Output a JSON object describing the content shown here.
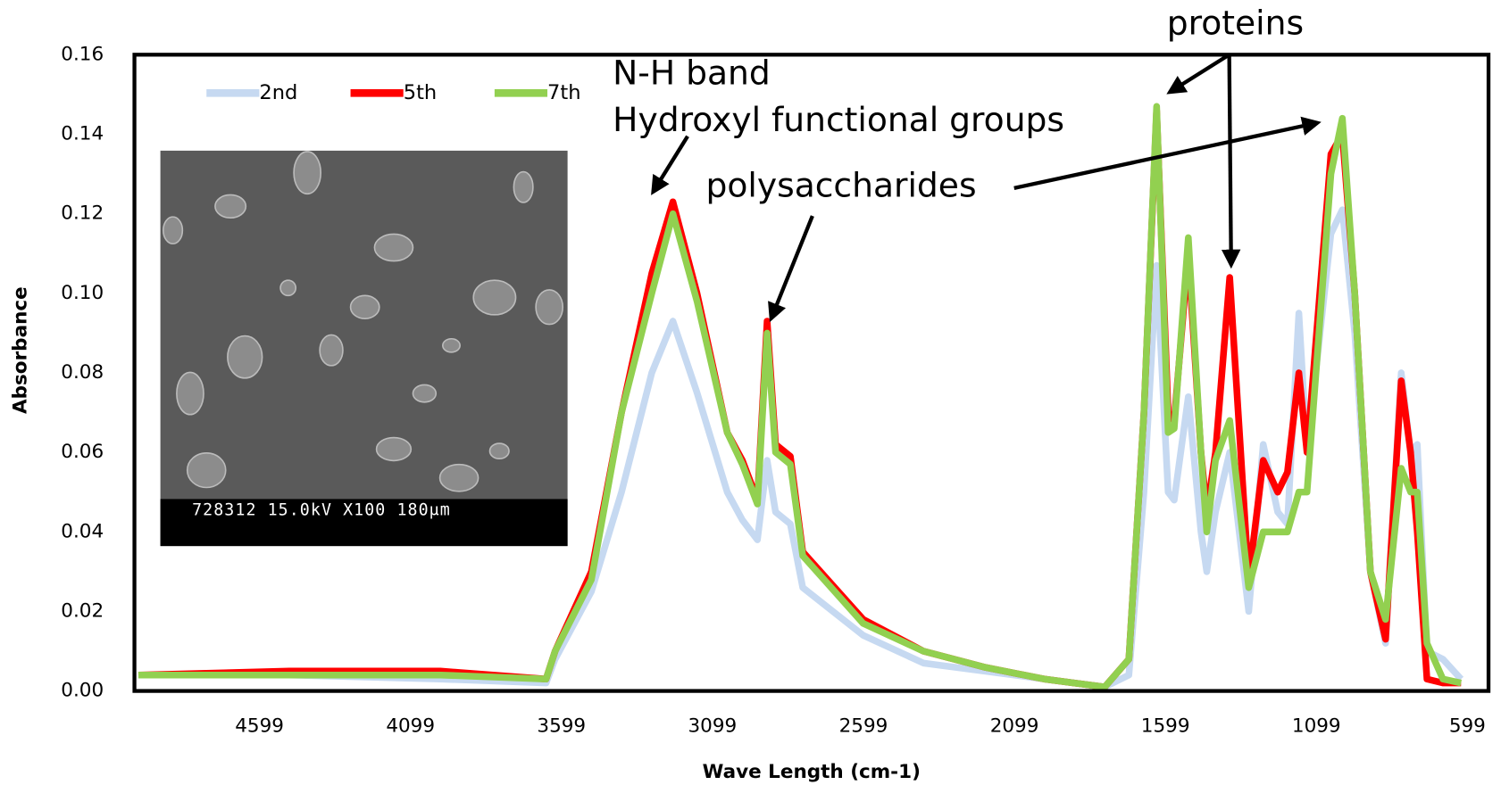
{
  "chart_data": {
    "type": "line",
    "x_label": "Wave Length (cm-1)",
    "y_label": "Absorbance",
    "xlim": [
      5013,
      529
    ],
    "xticks": [
      4599,
      4099,
      3599,
      3099,
      2599,
      2099,
      1599,
      1099,
      599
    ],
    "ylim": [
      0,
      0.16
    ],
    "yticks": [
      {
        "value": 0,
        "label": "0.00"
      },
      0.02,
      0.04,
      0.06,
      0.08,
      {
        "value": 0.1,
        "label": "0.10"
      },
      0.12,
      0.14,
      0.16
    ],
    "grid": false,
    "legend": "upper left",
    "x": [
      5000,
      4500,
      4000,
      3650,
      3620,
      3500,
      3400,
      3300,
      3230,
      3150,
      3050,
      3000,
      2950,
      2918,
      2890,
      2841,
      2800,
      2600,
      2400,
      2200,
      2000,
      1800,
      1720,
      1670,
      1628,
      1590,
      1570,
      1523,
      1481,
      1462,
      1433,
      1386,
      1323,
      1275,
      1227,
      1195,
      1157,
      1130,
      1051,
      1013,
      972,
      920,
      870,
      818,
      787,
      765,
      733,
      680,
      620
    ],
    "series": [
      {
        "name": "2nd",
        "color": "#c6d9f1",
        "values": [
          0.004,
          0.004,
          0.003,
          0.002,
          0.008,
          0.025,
          0.05,
          0.08,
          0.093,
          0.075,
          0.05,
          0.043,
          0.038,
          0.058,
          0.045,
          0.042,
          0.026,
          0.014,
          0.007,
          0.005,
          0.003,
          0.001,
          0.004,
          0.05,
          0.107,
          0.05,
          0.048,
          0.074,
          0.04,
          0.03,
          0.045,
          0.06,
          0.02,
          0.062,
          0.045,
          0.042,
          0.095,
          0.06,
          0.115,
          0.121,
          0.09,
          0.03,
          0.012,
          0.08,
          0.06,
          0.062,
          0.01,
          0.008,
          0.003
        ]
      },
      {
        "name": "5th",
        "color": "#ff0000",
        "values": [
          0.004,
          0.005,
          0.005,
          0.003,
          0.01,
          0.03,
          0.07,
          0.105,
          0.123,
          0.1,
          0.065,
          0.058,
          0.048,
          0.093,
          0.062,
          0.059,
          0.035,
          0.018,
          0.01,
          0.006,
          0.003,
          0.001,
          0.008,
          0.07,
          0.146,
          0.07,
          0.068,
          0.11,
          0.06,
          0.045,
          0.06,
          0.104,
          0.028,
          0.058,
          0.05,
          0.055,
          0.08,
          0.06,
          0.135,
          0.14,
          0.1,
          0.03,
          0.013,
          0.078,
          0.06,
          0.04,
          0.003,
          0.002,
          0.002
        ]
      },
      {
        "name": "7th",
        "color": "#92d050",
        "values": [
          0.004,
          0.004,
          0.004,
          0.003,
          0.01,
          0.028,
          0.07,
          0.1,
          0.12,
          0.098,
          0.065,
          0.057,
          0.047,
          0.09,
          0.06,
          0.057,
          0.034,
          0.017,
          0.01,
          0.006,
          0.003,
          0.001,
          0.008,
          0.07,
          0.147,
          0.065,
          0.066,
          0.114,
          0.06,
          0.04,
          0.058,
          0.068,
          0.026,
          0.04,
          0.04,
          0.04,
          0.05,
          0.05,
          0.13,
          0.144,
          0.1,
          0.03,
          0.018,
          0.056,
          0.05,
          0.05,
          0.012,
          0.003,
          0.002
        ]
      }
    ],
    "annotations": [
      "N-H band",
      "Hydroxyl functional groups",
      "polysaccharides",
      "proteins"
    ],
    "inset_caption": "728312 15.0kV  X100   180μm"
  }
}
